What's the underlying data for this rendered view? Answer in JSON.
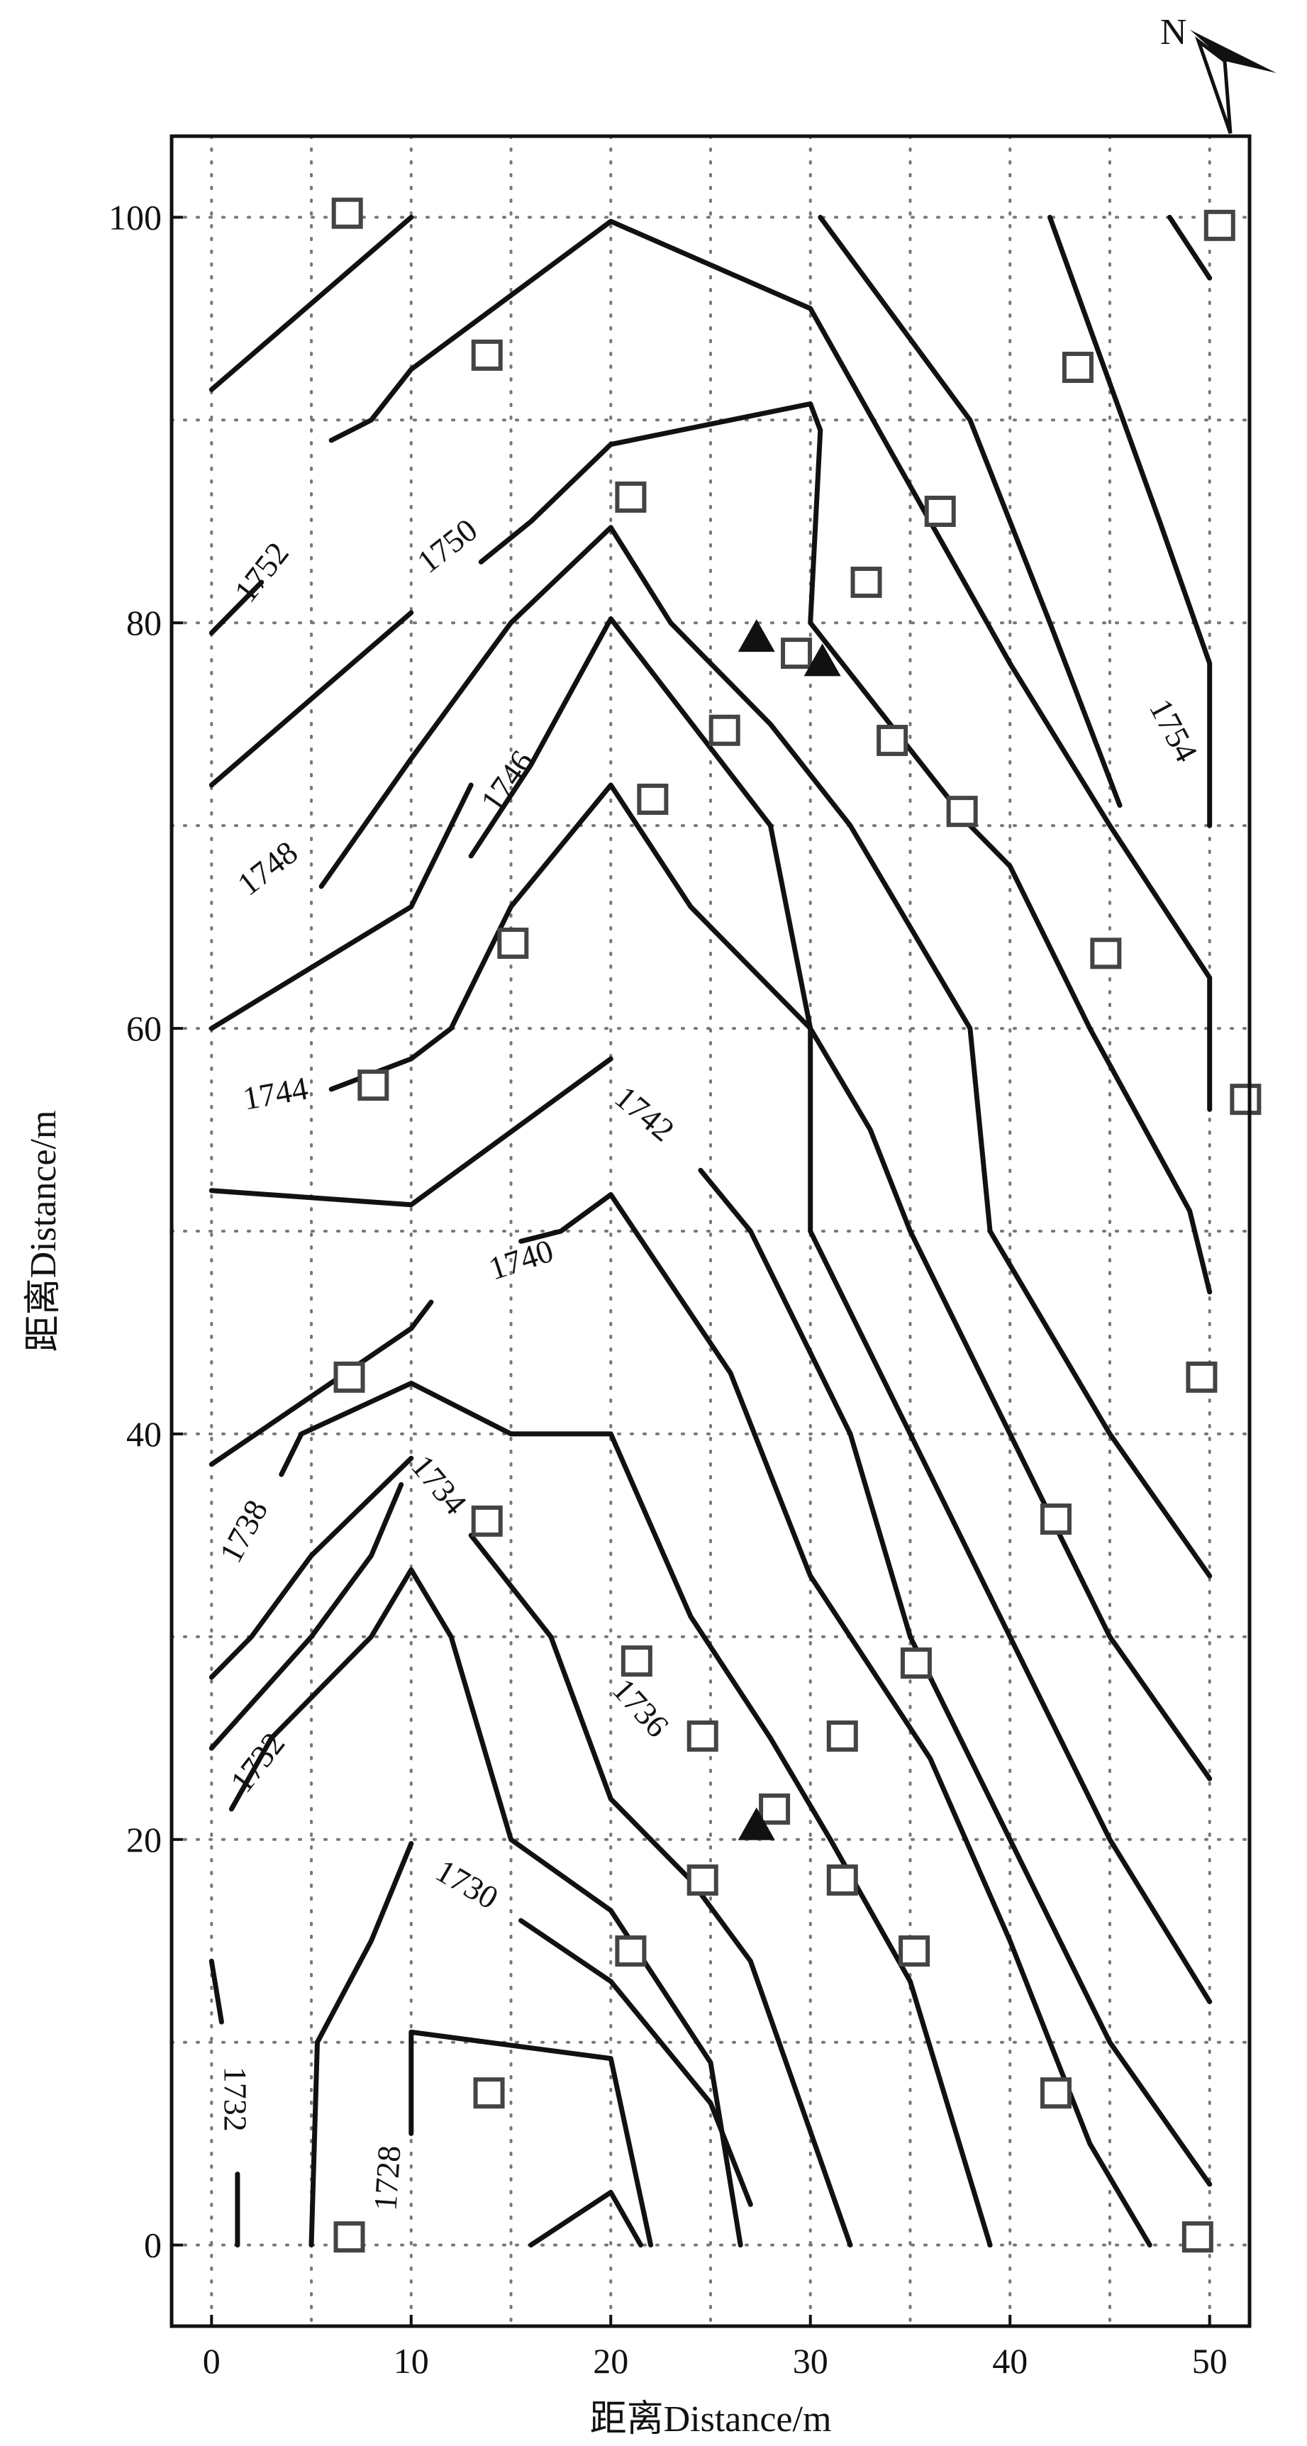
{
  "chart_data": {
    "type": "contour",
    "xlabel": "距离Distance/m",
    "ylabel": "距离Distance/m",
    "xlim": [
      -2,
      52
    ],
    "ylim": [
      -4,
      104
    ],
    "x_ticks": [
      0,
      10,
      20,
      30,
      40,
      50
    ],
    "y_ticks": [
      0,
      20,
      40,
      60,
      80,
      100
    ],
    "grid": "dotted",
    "north_label": "N",
    "colors": {
      "line": "#111111",
      "grid": "#777777",
      "marker": "#444444"
    },
    "contours": [
      {
        "points": [
          [
            0,
            91.5
          ],
          [
            10,
            100
          ]
        ]
      },
      {
        "points": [
          [
            0,
            79.5
          ],
          [
            2.5,
            82
          ]
        ]
      },
      {
        "points": [
          [
            6,
            89
          ],
          [
            8,
            90
          ],
          [
            10,
            92.5
          ],
          [
            20,
            99.8
          ],
          [
            30,
            95.5
          ],
          [
            36,
            85
          ],
          [
            40,
            78
          ],
          [
            45,
            70
          ],
          [
            50,
            62.5
          ],
          [
            50,
            56
          ]
        ]
      },
      {
        "points": [
          [
            30.5,
            100
          ],
          [
            38,
            90
          ],
          [
            42,
            80
          ],
          [
            45.5,
            71
          ]
        ]
      },
      {
        "points": [
          [
            42,
            100
          ],
          [
            47.5,
            85
          ],
          [
            50,
            78
          ],
          [
            50,
            70
          ]
        ]
      },
      {
        "points": [
          [
            48,
            100
          ],
          [
            50,
            97
          ]
        ]
      },
      {
        "points": [
          [
            0,
            72
          ],
          [
            10,
            80.5
          ]
        ]
      },
      {
        "points": [
          [
            13.5,
            83
          ],
          [
            16,
            85
          ],
          [
            20,
            88.8
          ],
          [
            30,
            90.8
          ],
          [
            30.5,
            89.5
          ],
          [
            30,
            80
          ],
          [
            34,
            75
          ],
          [
            38,
            70
          ],
          [
            40,
            68
          ],
          [
            44,
            60
          ],
          [
            49,
            51
          ],
          [
            50,
            47
          ]
        ]
      },
      {
        "points": [
          [
            0,
            60
          ],
          [
            10,
            66
          ],
          [
            13,
            72
          ]
        ]
      },
      {
        "points": [
          [
            5.5,
            67
          ],
          [
            10,
            73.3
          ],
          [
            15,
            80
          ],
          [
            20,
            84.7
          ],
          [
            23,
            80
          ],
          [
            28,
            75
          ],
          [
            32,
            70
          ],
          [
            38,
            60
          ],
          [
            39,
            50
          ],
          [
            45,
            40
          ],
          [
            50,
            33
          ]
        ]
      },
      {
        "points": [
          [
            6,
            57
          ],
          [
            10,
            58.5
          ],
          [
            12,
            60
          ],
          [
            15,
            66
          ],
          [
            20,
            72
          ],
          [
            24,
            66
          ],
          [
            30,
            60
          ],
          [
            33,
            55
          ],
          [
            35,
            50
          ],
          [
            40,
            40
          ],
          [
            45,
            30
          ],
          [
            50,
            23
          ]
        ]
      },
      {
        "points": [
          [
            13,
            68.5
          ],
          [
            16,
            73
          ],
          [
            20,
            80.2
          ],
          [
            28,
            70
          ],
          [
            30,
            60
          ],
          [
            30,
            50
          ],
          [
            35,
            40
          ],
          [
            40,
            30
          ],
          [
            45,
            20
          ],
          [
            50,
            12
          ]
        ]
      },
      {
        "points": [
          [
            0,
            52
          ],
          [
            10,
            51.3
          ],
          [
            20,
            58.5
          ]
        ]
      },
      {
        "points": [
          [
            24.5,
            53
          ],
          [
            27,
            50
          ],
          [
            32,
            40
          ],
          [
            35,
            30
          ],
          [
            40,
            20
          ],
          [
            45,
            10
          ],
          [
            50,
            3
          ]
        ]
      },
      {
        "points": [
          [
            0,
            38.5
          ],
          [
            10,
            45.2
          ],
          [
            11,
            46.5
          ]
        ]
      },
      {
        "points": [
          [
            15.5,
            49.5
          ],
          [
            17.5,
            50
          ],
          [
            20,
            51.8
          ],
          [
            26,
            43
          ],
          [
            30,
            33
          ],
          [
            36,
            24
          ],
          [
            40,
            15
          ],
          [
            44,
            5
          ],
          [
            47,
            0
          ]
        ]
      },
      {
        "points": [
          [
            3.5,
            38
          ],
          [
            4.5,
            40
          ],
          [
            10,
            42.5
          ],
          [
            15,
            40
          ],
          [
            20,
            40
          ],
          [
            24,
            31
          ],
          [
            28,
            25
          ],
          [
            31,
            20
          ],
          [
            35,
            13
          ],
          [
            39,
            0
          ]
        ]
      },
      {
        "points": [
          [
            0,
            28
          ],
          [
            2,
            30
          ],
          [
            5,
            34
          ],
          [
            10,
            38.8
          ]
        ]
      },
      {
        "points": [
          [
            13,
            35
          ],
          [
            17,
            30
          ],
          [
            20,
            22
          ],
          [
            24,
            18
          ],
          [
            27,
            14
          ],
          [
            32,
            0
          ]
        ]
      },
      {
        "points": [
          [
            0,
            24.5
          ],
          [
            5,
            30
          ],
          [
            8,
            34
          ],
          [
            9.5,
            37.5
          ]
        ]
      },
      {
        "points": [
          [
            1,
            21.5
          ],
          [
            3,
            25
          ],
          [
            8,
            30
          ],
          [
            10,
            33.3
          ],
          [
            12,
            30
          ],
          [
            15,
            20
          ],
          [
            20,
            16.5
          ],
          [
            25,
            9
          ],
          [
            26.5,
            0
          ]
        ]
      },
      {
        "points": [
          [
            5,
            0
          ],
          [
            5.3,
            10
          ],
          [
            8,
            15
          ],
          [
            10,
            19.8
          ]
        ]
      },
      {
        "points": [
          [
            15.5,
            16
          ],
          [
            20,
            13
          ],
          [
            25,
            7
          ],
          [
            27,
            2
          ]
        ]
      },
      {
        "points": [
          [
            10,
            5.5
          ],
          [
            10,
            10.5
          ],
          [
            20,
            9.2
          ],
          [
            22,
            0
          ]
        ]
      },
      {
        "points": [
          [
            16,
            0
          ],
          [
            20,
            2.6
          ],
          [
            21.5,
            0
          ]
        ]
      },
      {
        "points": [
          [
            0,
            14
          ],
          [
            0.5,
            11
          ]
        ]
      },
      {
        "points": [
          [
            1.3,
            3.5
          ],
          [
            1.3,
            0
          ]
        ]
      }
    ],
    "contour_labels": [
      {
        "text": "1752",
        "x": 2.5,
        "y": 82.5,
        "angle": -52
      },
      {
        "text": "1750",
        "x": 11.8,
        "y": 83.8,
        "angle": -38
      },
      {
        "text": "1754",
        "x": 48.2,
        "y": 74.7,
        "angle": 62
      },
      {
        "text": "1746",
        "x": 14.8,
        "y": 72.2,
        "angle": -55
      },
      {
        "text": "1748",
        "x": 2.8,
        "y": 67.9,
        "angle": -38
      },
      {
        "text": "1744",
        "x": 3.2,
        "y": 56.8,
        "angle": -10
      },
      {
        "text": "1742",
        "x": 21.7,
        "y": 55.8,
        "angle": 40
      },
      {
        "text": "1740",
        "x": 15.5,
        "y": 48.6,
        "angle": -18
      },
      {
        "text": "1738",
        "x": 1.6,
        "y": 35.2,
        "angle": -62
      },
      {
        "text": "1734",
        "x": 11.4,
        "y": 37.5,
        "angle": 50
      },
      {
        "text": "1736",
        "x": 21.5,
        "y": 26.5,
        "angle": 48
      },
      {
        "text": "1732",
        "x": 2.3,
        "y": 23.8,
        "angle": -52
      },
      {
        "text": "1730",
        "x": 12.8,
        "y": 17.8,
        "angle": 30
      },
      {
        "text": "1728",
        "x": 8.8,
        "y": 3.3,
        "angle": -86
      },
      {
        "text": "1732",
        "x": 1.2,
        "y": 7.2,
        "angle": 90
      }
    ],
    "squares": [
      [
        6.8,
        100.2
      ],
      [
        13.8,
        93.2
      ],
      [
        21,
        86.2
      ],
      [
        32.8,
        82
      ],
      [
        36.5,
        85.5
      ],
      [
        43.4,
        92.6
      ],
      [
        50.5,
        99.6
      ],
      [
        29.3,
        78.5
      ],
      [
        25.7,
        74.7
      ],
      [
        34.1,
        74.2
      ],
      [
        37.6,
        70.7
      ],
      [
        22.1,
        71.3
      ],
      [
        15.1,
        64.2
      ],
      [
        44.8,
        63.7
      ],
      [
        8.1,
        57.2
      ],
      [
        51.8,
        56.5
      ],
      [
        6.9,
        42.8
      ],
      [
        49.6,
        42.8
      ],
      [
        13.8,
        35.7
      ],
      [
        42.3,
        35.8
      ],
      [
        21.3,
        28.8
      ],
      [
        35.3,
        28.7
      ],
      [
        24.6,
        25.1
      ],
      [
        31.6,
        25.1
      ],
      [
        28.2,
        21.5
      ],
      [
        24.6,
        18
      ],
      [
        31.6,
        18
      ],
      [
        21,
        14.5
      ],
      [
        35.2,
        14.5
      ],
      [
        13.9,
        7.5
      ],
      [
        42.3,
        7.5
      ],
      [
        6.9,
        0.4
      ],
      [
        49.4,
        0.4
      ]
    ],
    "triangles": [
      [
        27.3,
        79.2
      ],
      [
        30.6,
        78
      ],
      [
        27.3,
        20.6
      ]
    ]
  }
}
